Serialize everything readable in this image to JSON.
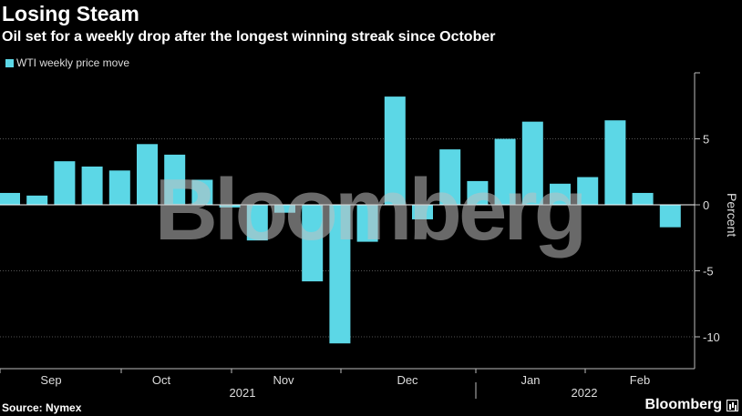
{
  "chart_data": {
    "type": "bar",
    "title": "Losing Steam",
    "subtitle": "Oil set for a weekly drop after the longest winning streak since October",
    "legend": "WTI weekly price move",
    "ylabel": "Percent",
    "ylim": [
      -12.5,
      9.8
    ],
    "yticks": [
      -10,
      -5,
      0,
      5
    ],
    "gridlines": true,
    "color": "#5cd7e6",
    "values": [
      0.9,
      0.7,
      3.3,
      2.9,
      2.6,
      4.6,
      3.8,
      1.9,
      -0.2,
      -2.7,
      -0.6,
      -5.8,
      -10.5,
      -2.8,
      8.2,
      -1.1,
      4.2,
      1.8,
      5.0,
      6.3,
      1.6,
      2.1,
      6.4,
      0.9,
      -1.7
    ],
    "month_labels": [
      "Sep",
      "Oct",
      "Nov",
      "Dec",
      "Jan",
      "Feb"
    ],
    "year_labels": [
      "2021",
      "2022"
    ],
    "source": "Source: Nymex",
    "watermark": "Bloomberg",
    "brand": "Bloomberg"
  }
}
